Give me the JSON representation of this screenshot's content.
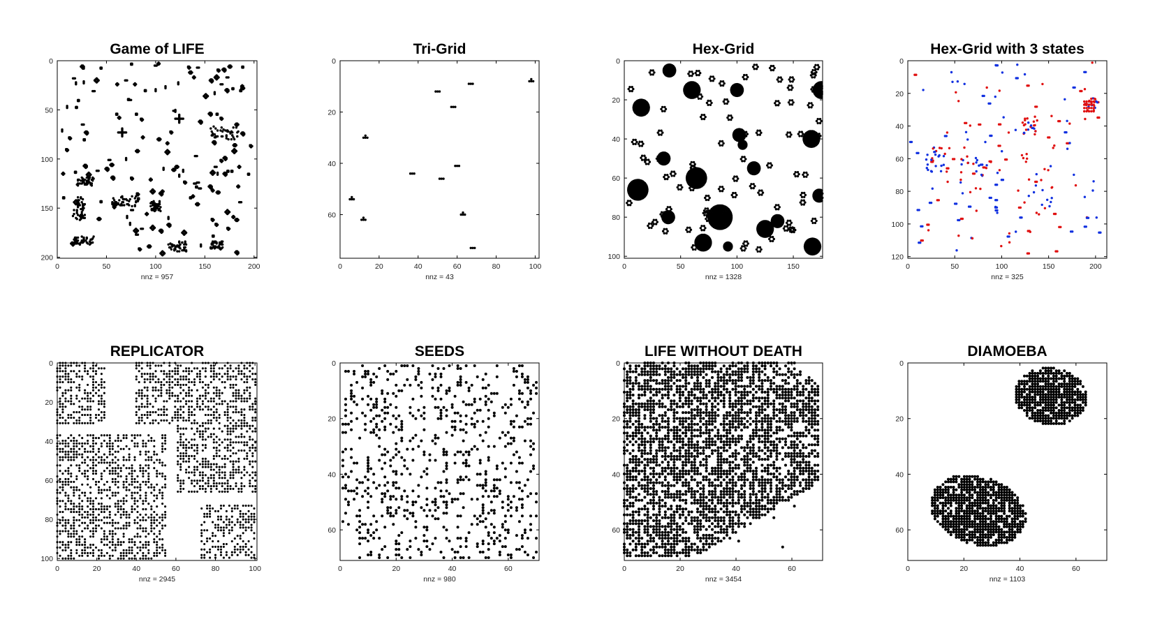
{
  "chart_data": [
    {
      "type": "scatter",
      "title": "Game of LIFE",
      "xlabel": "nnz = 957",
      "xlim": [
        0,
        203
      ],
      "ylim": [
        0,
        201
      ],
      "y_reversed": true,
      "xticks": [
        0,
        50,
        100,
        150,
        200
      ],
      "yticks": [
        0,
        50,
        100,
        150,
        200
      ],
      "nnz": 957,
      "marker_colors": [
        "#000000"
      ],
      "generator": "sparse-life"
    },
    {
      "type": "scatter",
      "title": "Tri-Grid",
      "xlabel": "nnz = 43",
      "xlim": [
        0,
        102
      ],
      "ylim": [
        0,
        77
      ],
      "y_reversed": true,
      "xticks": [
        0,
        20,
        40,
        60,
        80,
        100
      ],
      "yticks": [
        0,
        20,
        40,
        60
      ],
      "nnz": 43,
      "marker_colors": [
        "#000000"
      ],
      "generator": "tri-grid",
      "clusters": [
        [
          13,
          30
        ],
        [
          6,
          54
        ],
        [
          12,
          62
        ],
        [
          50,
          12
        ],
        [
          58,
          18
        ],
        [
          37,
          44
        ],
        [
          52,
          46
        ],
        [
          60,
          41
        ],
        [
          63,
          60
        ],
        [
          68,
          73
        ],
        [
          67,
          9
        ],
        [
          98,
          8
        ]
      ]
    },
    {
      "type": "scatter",
      "title": "Hex-Grid",
      "xlabel": "nnz = 1328",
      "xlim": [
        0,
        176
      ],
      "ylim": [
        0,
        101
      ],
      "y_reversed": true,
      "xticks": [
        0,
        50,
        100,
        150
      ],
      "yticks": [
        0,
        20,
        40,
        60,
        80,
        100
      ],
      "nnz": 1328,
      "marker_colors": [
        "#000000"
      ],
      "generator": "hex-shapes"
    },
    {
      "type": "scatter",
      "title": "Hex-Grid with 3 states",
      "xlabel": "nnz = 325",
      "xlim": [
        0,
        212
      ],
      "ylim": [
        0,
        121
      ],
      "y_reversed": true,
      "xticks": [
        0,
        50,
        100,
        150,
        200
      ],
      "yticks": [
        0,
        20,
        40,
        60,
        80,
        100,
        120
      ],
      "nnz": 325,
      "marker_colors": [
        "#e01010",
        "#1030e0"
      ],
      "generator": "hex-3states"
    },
    {
      "type": "scatter",
      "title": "REPLICATOR",
      "xlabel": "nnz = 2945",
      "xlim": [
        0,
        101
      ],
      "ylim": [
        0,
        101
      ],
      "y_reversed": true,
      "xticks": [
        0,
        20,
        40,
        60,
        80,
        100
      ],
      "yticks": [
        0,
        20,
        40,
        60,
        80,
        100
      ],
      "nnz": 2945,
      "marker_colors": [
        "#000000"
      ],
      "generator": "replicator",
      "blocks": [
        [
          0,
          0,
          24,
          31
        ],
        [
          40,
          0,
          61,
          31
        ],
        [
          61,
          0,
          101,
          66
        ],
        [
          0,
          37,
          55,
          101
        ],
        [
          73,
          73,
          101,
          101
        ]
      ]
    },
    {
      "type": "scatter",
      "title": "SEEDS",
      "xlabel": "nnz = 980",
      "xlim": [
        0,
        71
      ],
      "ylim": [
        0,
        71
      ],
      "y_reversed": true,
      "xticks": [
        0,
        20,
        40,
        60
      ],
      "yticks": [
        0,
        20,
        40,
        60
      ],
      "nnz": 980,
      "marker_colors": [
        "#000000"
      ],
      "generator": "seeds"
    },
    {
      "type": "scatter",
      "title": "LIFE WITHOUT DEATH",
      "xlabel": "nnz = 3454",
      "xlim": [
        0,
        71
      ],
      "ylim": [
        0,
        71
      ],
      "y_reversed": true,
      "xticks": [
        0,
        20,
        40,
        60
      ],
      "yticks": [
        0,
        20,
        40,
        60
      ],
      "nnz": 3454,
      "marker_colors": [
        "#000000"
      ],
      "generator": "life-without-death"
    },
    {
      "type": "scatter",
      "title": "DIAMOEBA",
      "xlabel": "nnz = 1103",
      "xlim": [
        0,
        71
      ],
      "ylim": [
        0,
        71
      ],
      "y_reversed": true,
      "xticks": [
        0,
        20,
        40,
        60
      ],
      "yticks": [
        0,
        20,
        40,
        60
      ],
      "nnz": 1103,
      "marker_colors": [
        "#000000"
      ],
      "generator": "diamoeba",
      "blobs": [
        {
          "cx": 51,
          "cy": 12,
          "rx": 11,
          "ry": 11
        },
        {
          "cx": 25,
          "cy": 53,
          "rx": 15,
          "ry": 13
        }
      ]
    }
  ]
}
